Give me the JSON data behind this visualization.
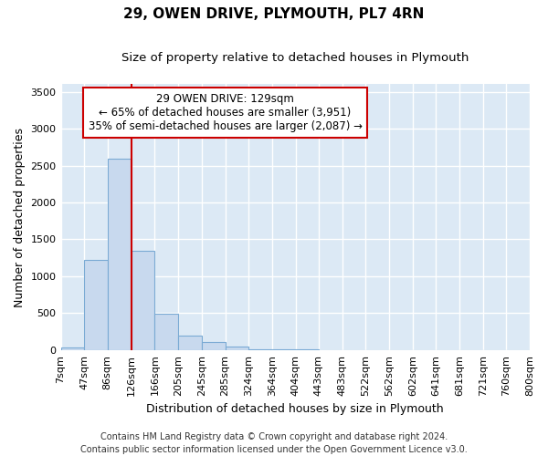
{
  "title": "29, OWEN DRIVE, PLYMOUTH, PL7 4RN",
  "subtitle": "Size of property relative to detached houses in Plymouth",
  "xlabel": "Distribution of detached houses by size in Plymouth",
  "ylabel": "Number of detached properties",
  "footer_line1": "Contains HM Land Registry data © Crown copyright and database right 2024.",
  "footer_line2": "Contains public sector information licensed under the Open Government Licence v3.0.",
  "annotation_title": "29 OWEN DRIVE: 129sqm",
  "annotation_line1": "← 65% of detached houses are smaller (3,951)",
  "annotation_line2": "35% of semi-detached houses are larger (2,087) →",
  "bar_edges": [
    7,
    47,
    86,
    126,
    166,
    205,
    245,
    285,
    324,
    364,
    404,
    443,
    483,
    522,
    562,
    602,
    641,
    681,
    721,
    760,
    800
  ],
  "bar_heights": [
    35,
    1220,
    2590,
    1350,
    490,
    200,
    110,
    45,
    10,
    5,
    5,
    0,
    2,
    0,
    0,
    0,
    0,
    0,
    0,
    0
  ],
  "bar_color": "#c8d9ee",
  "bar_edgecolor": "#7aaad4",
  "red_line_x": 126,
  "ylim": [
    0,
    3600
  ],
  "yticks": [
    0,
    500,
    1000,
    1500,
    2000,
    2500,
    3000,
    3500
  ],
  "bg_color": "#dce9f5",
  "annotation_box_facecolor": "#ffffff",
  "annotation_box_edgecolor": "#cc0000",
  "red_line_color": "#cc0000",
  "title_fontsize": 11,
  "subtitle_fontsize": 9.5,
  "axis_label_fontsize": 9,
  "tick_fontsize": 8,
  "annotation_fontsize": 8.5,
  "footer_fontsize": 7.0
}
